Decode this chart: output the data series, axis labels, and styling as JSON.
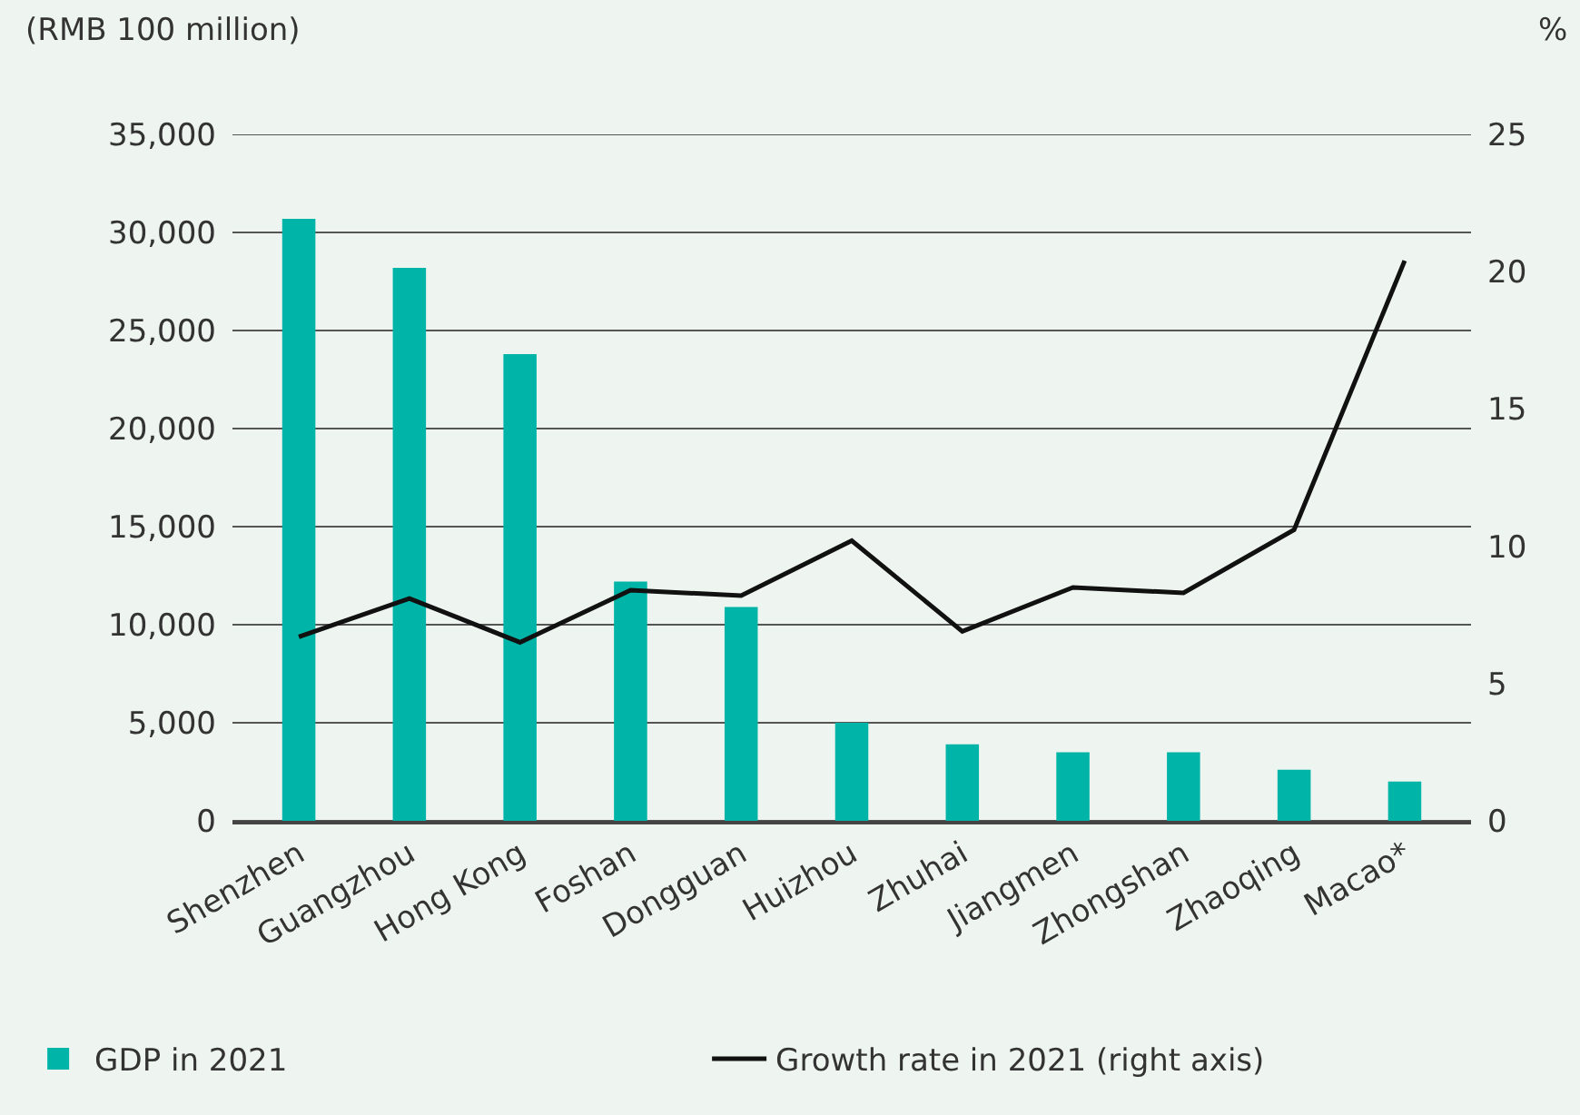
{
  "chart_data": {
    "type": "bar",
    "ylabel": "(RMB 100 million)",
    "y2label": "%",
    "categories": [
      "Shenzhen",
      "Guangzhou",
      "Hong Kong",
      "Foshan",
      "Dongguan",
      "Huizhou",
      "Zhuhai",
      "Jiangmen",
      "Zhongshan",
      "Zhaoqing",
      "Macao*"
    ],
    "series": [
      {
        "name": "GDP in 2021",
        "color": "#00b5a7",
        "values": [
          30700,
          28200,
          23800,
          12200,
          10900,
          5000,
          3900,
          3500,
          3500,
          2600,
          2000
        ]
      },
      {
        "name": "Growth rate in 2021 (right axis)",
        "type": "line",
        "axis": "y2",
        "color": "#111111",
        "values": [
          6.7,
          8.1,
          6.5,
          8.4,
          8.2,
          10.2,
          6.9,
          8.5,
          8.3,
          10.6,
          20.4
        ]
      }
    ],
    "ylim": [
      0,
      35000
    ],
    "yticks": [
      0,
      {
        "value": 5000,
        "label": "5,000"
      },
      {
        "value": 10000,
        "label": "10,000"
      },
      {
        "value": 15000,
        "label": "15,000"
      },
      {
        "value": 20000,
        "label": "20,000"
      },
      {
        "value": 25000,
        "label": "25,000"
      },
      {
        "value": 30000,
        "label": "30,000"
      },
      {
        "value": 35000,
        "label": "35,000"
      }
    ],
    "y2lim": [
      0,
      25
    ],
    "y2ticks": [
      0,
      5,
      10,
      15,
      20,
      25
    ],
    "grid": "y",
    "legend": "bottom left",
    "marker": "none",
    "line_style": "solid"
  }
}
